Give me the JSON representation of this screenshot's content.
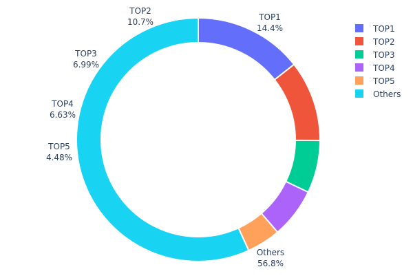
{
  "chart_data": {
    "type": "pie",
    "hole": true,
    "direction": "clockwise",
    "legend_position": "top-right",
    "categories": [
      "TOP1",
      "TOP2",
      "TOP3",
      "TOP4",
      "TOP5",
      "Others"
    ],
    "values": [
      14.4,
      10.7,
      6.99,
      6.63,
      4.48,
      56.8
    ],
    "value_labels": [
      "14.4%",
      "10.7%",
      "6.99%",
      "6.63%",
      "4.48%",
      "56.8%"
    ],
    "colors": [
      "#636efa",
      "#EF553B",
      "#00cc96",
      "#ab63fa",
      "#FFA15A",
      "#19d3f3"
    ]
  }
}
